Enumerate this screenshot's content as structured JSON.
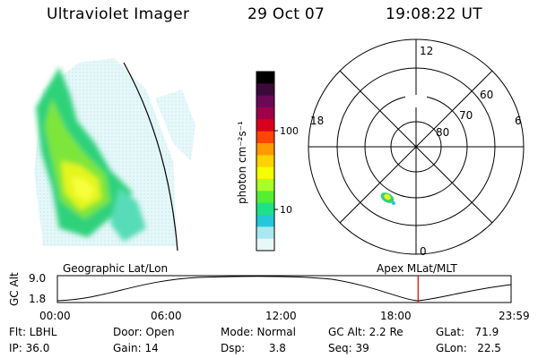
{
  "header": {
    "title": "Ultraviolet Imager",
    "date": "29 Oct 07",
    "time": "19:08:22 UT"
  },
  "colorbar": {
    "label": "photon cm⁻²s⁻¹",
    "ticks": [
      "100",
      "10"
    ],
    "colors": [
      "#000000",
      "#3b0a3b",
      "#6a0a56",
      "#a0004a",
      "#d8001f",
      "#ff4500",
      "#ff9900",
      "#ffd200",
      "#f4ff00",
      "#a8ff2a",
      "#55ee33",
      "#1ee086",
      "#25c8d8",
      "#a9e8f0",
      "#e8f7f8"
    ]
  },
  "polar": {
    "ring_labels": [
      "80",
      "70",
      "60"
    ],
    "mlt_labels": {
      "top": "12",
      "left": "18",
      "right": "6",
      "bottom": "0"
    }
  },
  "altitude_plot": {
    "left_label": "Geographic Lat/Lon",
    "right_label": "Apex  MLat/MLT",
    "y_axis_label": "GC Alt",
    "y_ticks": [
      "9.0",
      "1.8"
    ],
    "x_ticks": [
      "00:00",
      "06:00",
      "12:00",
      "18:00",
      "23:59"
    ],
    "current_time_fraction": 0.795
  },
  "info": {
    "flt": "Flt: LBHL",
    "ip": "IP: 36.0",
    "door": "Door: Open",
    "gain": "Gain: 14",
    "mode": "Mode: Normal",
    "dsp": "Dsp:       3.8",
    "gc_alt": "GC Alt: 2.2 Re",
    "seq": "Seq: 39",
    "glat": "GLat:   71.9",
    "glon": "GLon:   22.5"
  }
}
